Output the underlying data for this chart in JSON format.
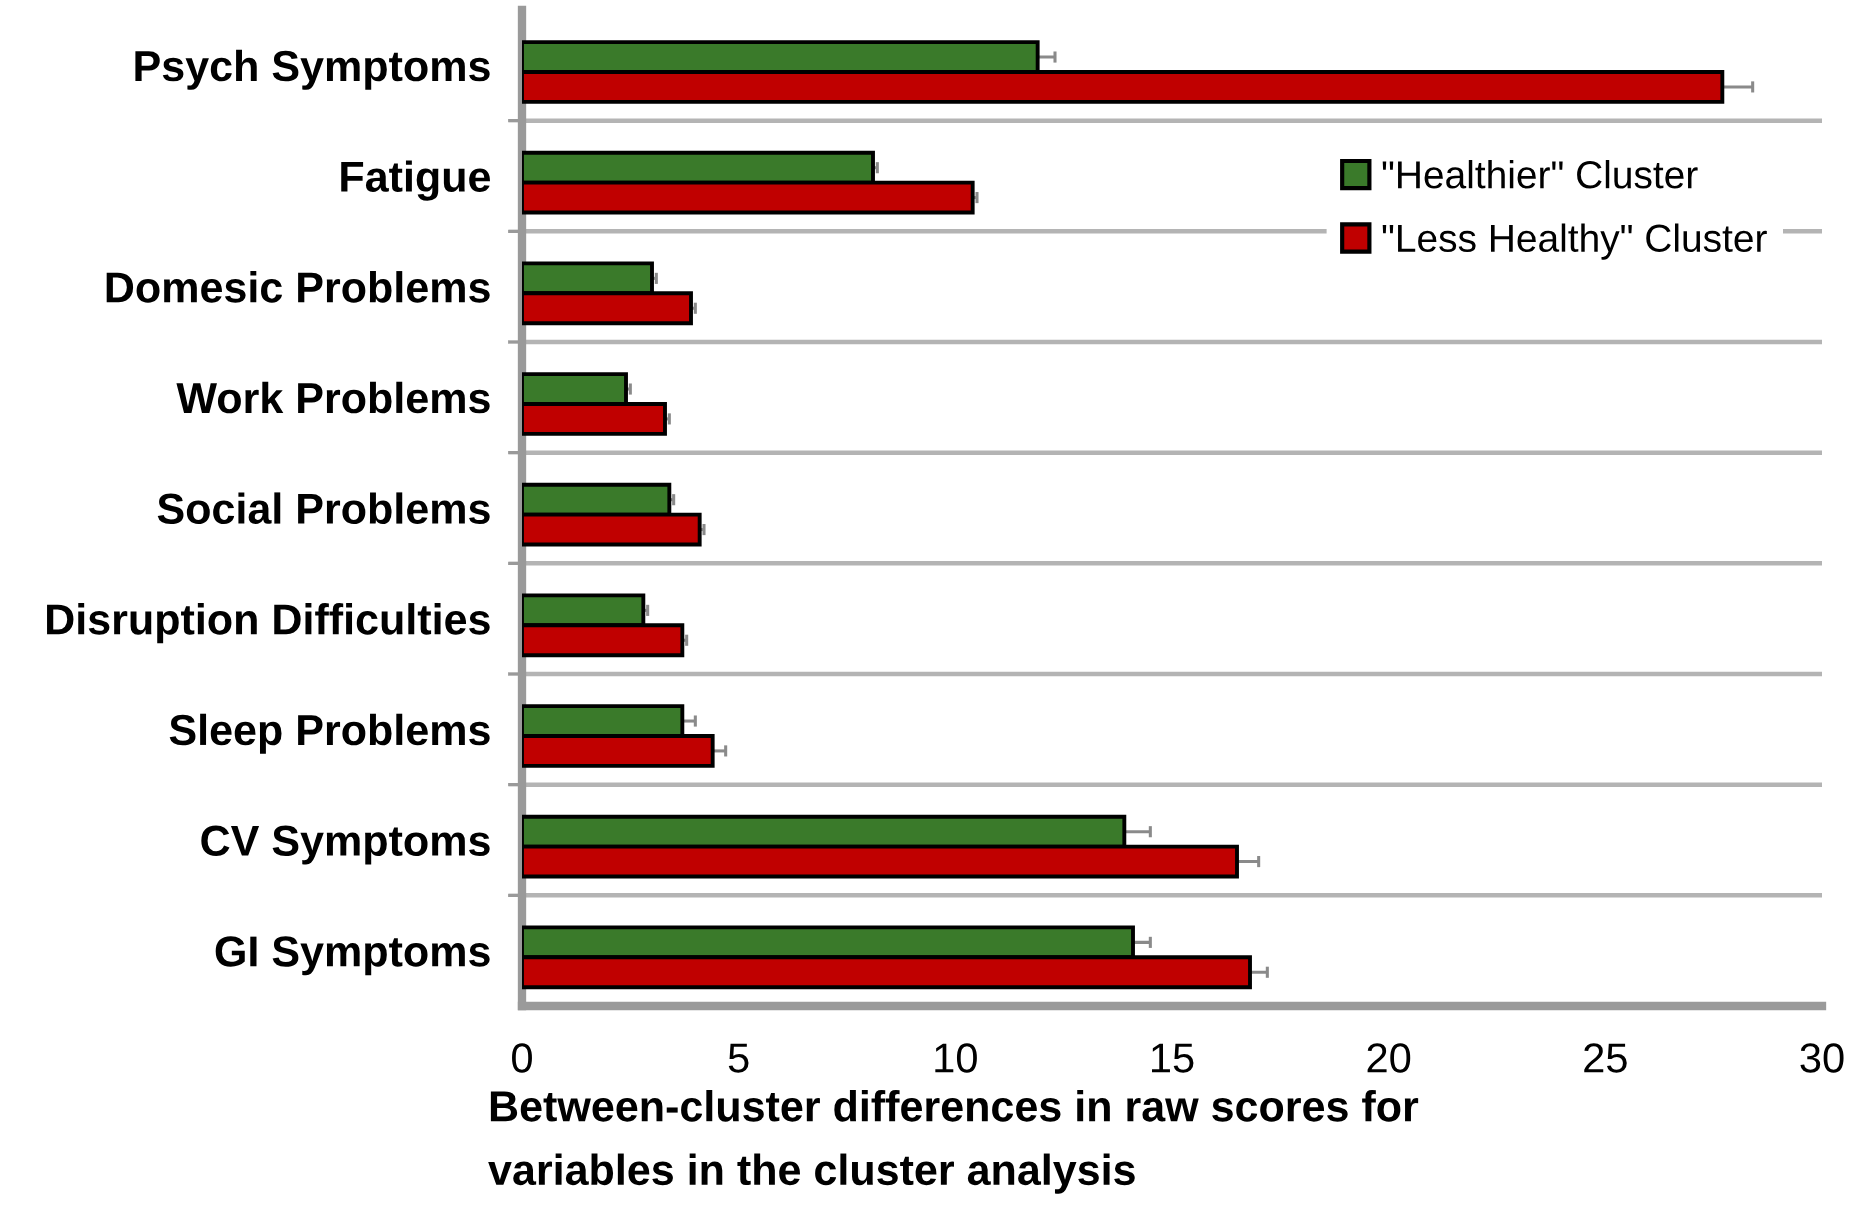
{
  "chart_data": {
    "type": "bar",
    "orientation": "horizontal",
    "categories": [
      "Psych Symptoms",
      "Fatigue",
      "Domesic Problems",
      "Work Problems",
      "Social Problems",
      "Disruption Difficulties",
      "Sleep Problems",
      "CV Symptoms",
      "GI Symptoms"
    ],
    "series": [
      {
        "name": "\"Healthier\" Cluster",
        "color": "#3a7a2a",
        "values": [
          11.9,
          8.1,
          3.0,
          2.4,
          3.4,
          2.8,
          3.7,
          13.9,
          14.1
        ],
        "errors": [
          0.4,
          0.1,
          0.1,
          0.1,
          0.1,
          0.1,
          0.3,
          0.6,
          0.4
        ]
      },
      {
        "name": "\"Less Healthy\" Cluster",
        "color": "#c00000",
        "values": [
          27.7,
          10.4,
          3.9,
          3.3,
          4.1,
          3.7,
          4.4,
          16.5,
          16.8
        ],
        "errors": [
          0.7,
          0.1,
          0.1,
          0.1,
          0.1,
          0.1,
          0.3,
          0.5,
          0.4
        ]
      }
    ],
    "xlim": [
      0,
      30
    ],
    "xticks": [
      0,
      5,
      10,
      15,
      20,
      25,
      30
    ],
    "xlabel": "Between-cluster differences in raw scores for\nvariables in the cluster analysis",
    "grid": "y",
    "legend": "top right"
  }
}
